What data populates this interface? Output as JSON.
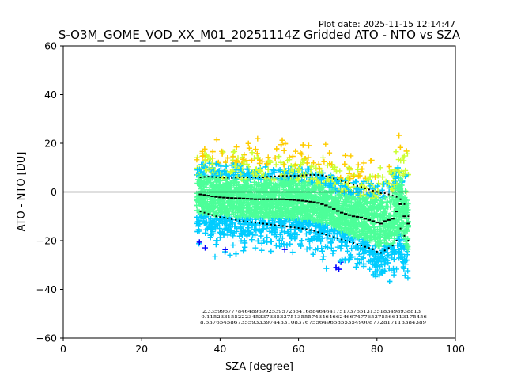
{
  "chart_data": {
    "type": "scatter",
    "title": "S-O3M_GOME_VOD_XX_M01_20251114Z Gridded ATO - NTO vs SZA",
    "plot_date": "Plot date: 2025-11-15 12:14:47",
    "xlabel": "SZA [degree]",
    "ylabel": "ATO - NTO [DU]",
    "xlim": [
      0,
      100
    ],
    "ylim": [
      -60,
      60
    ],
    "xticks": [
      "0",
      "20",
      "40",
      "60",
      "80",
      "100"
    ],
    "yticks": [
      "−60",
      "−40",
      "−20",
      "0",
      "20",
      "40",
      "60"
    ],
    "grid": false,
    "reference_line_y": 0,
    "marker": "+",
    "density_colors": [
      "#0000ff",
      "#00ccff",
      "#4dff99",
      "#ccff33",
      "#ffcc00"
    ],
    "sza_range": [
      34,
      88
    ],
    "bin_centers": [
      35,
      36,
      37,
      38,
      39,
      40,
      41,
      42,
      43,
      44,
      45,
      46,
      47,
      48,
      49,
      50,
      51,
      52,
      53,
      54,
      55,
      56,
      57,
      58,
      59,
      60,
      61,
      62,
      63,
      64,
      65,
      66,
      67,
      68,
      69,
      70,
      71,
      72,
      73,
      74,
      75,
      76,
      77,
      78,
      79,
      80,
      81,
      82,
      83,
      84,
      85,
      86,
      87,
      88
    ],
    "mean": [
      -1,
      -1.2,
      -1.5,
      -1.8,
      -2,
      -2.2,
      -2.3,
      -2.4,
      -2.5,
      -2.6,
      -2.6,
      -2.7,
      -2.8,
      -2.9,
      -3,
      -3,
      -3,
      -3,
      -3,
      -3,
      -3,
      -3,
      -3.1,
      -3.2,
      -3.3,
      -3.5,
      -3.6,
      -3.8,
      -4,
      -4.2,
      -4.5,
      -5,
      -5.5,
      -6.2,
      -7,
      -7.8,
      -8.5,
      -9,
      -9.5,
      -10,
      -10.2,
      -10.5,
      -11,
      -11.5,
      -12,
      -12.5,
      -13,
      -12,
      -11.5,
      -11,
      -8,
      -5,
      -10,
      -13
    ],
    "upper": [
      6,
      6.2,
      6.3,
      6.2,
      6.1,
      6,
      5.9,
      5.8,
      5.8,
      5.9,
      6,
      6,
      6,
      6,
      5.9,
      6,
      6,
      6.2,
      6.3,
      6.4,
      6.5,
      6.6,
      6.6,
      6.6,
      6.6,
      6.7,
      6.8,
      6.9,
      7,
      7,
      7,
      6.8,
      6.5,
      6,
      5.5,
      5,
      4.5,
      4,
      3.5,
      3,
      2.5,
      2,
      1.5,
      1,
      0.5,
      0,
      -0.5,
      -0.5,
      -1,
      -1.5,
      -2,
      -3,
      -5,
      -10
    ],
    "lower": [
      -8,
      -8.5,
      -9,
      -9.5,
      -10,
      -10.3,
      -10.6,
      -10.9,
      -11.2,
      -11.5,
      -11.8,
      -12,
      -12.2,
      -12.4,
      -12.6,
      -12.8,
      -13,
      -13.2,
      -13.4,
      -13.6,
      -13.8,
      -14,
      -14.2,
      -14.4,
      -14.6,
      -14.8,
      -15,
      -15.3,
      -15.6,
      -16,
      -16.5,
      -17,
      -17.5,
      -18,
      -18.5,
      -19,
      -19.5,
      -20,
      -20.5,
      -21,
      -21.5,
      -22,
      -22.5,
      -23,
      -23.5,
      -24.5,
      -25,
      -24,
      -23,
      -22,
      -20,
      -15,
      -18,
      -20
    ],
    "stats_row1": "2.335996777846489399253957256416884646417517375513135183498938813",
    "stats_row2": "-0.115233155222345337335337513555743464662466747765375566113175456",
    "stats_row3": "8.53765458673559333974433108376755649658553549008772817113384389"
  }
}
